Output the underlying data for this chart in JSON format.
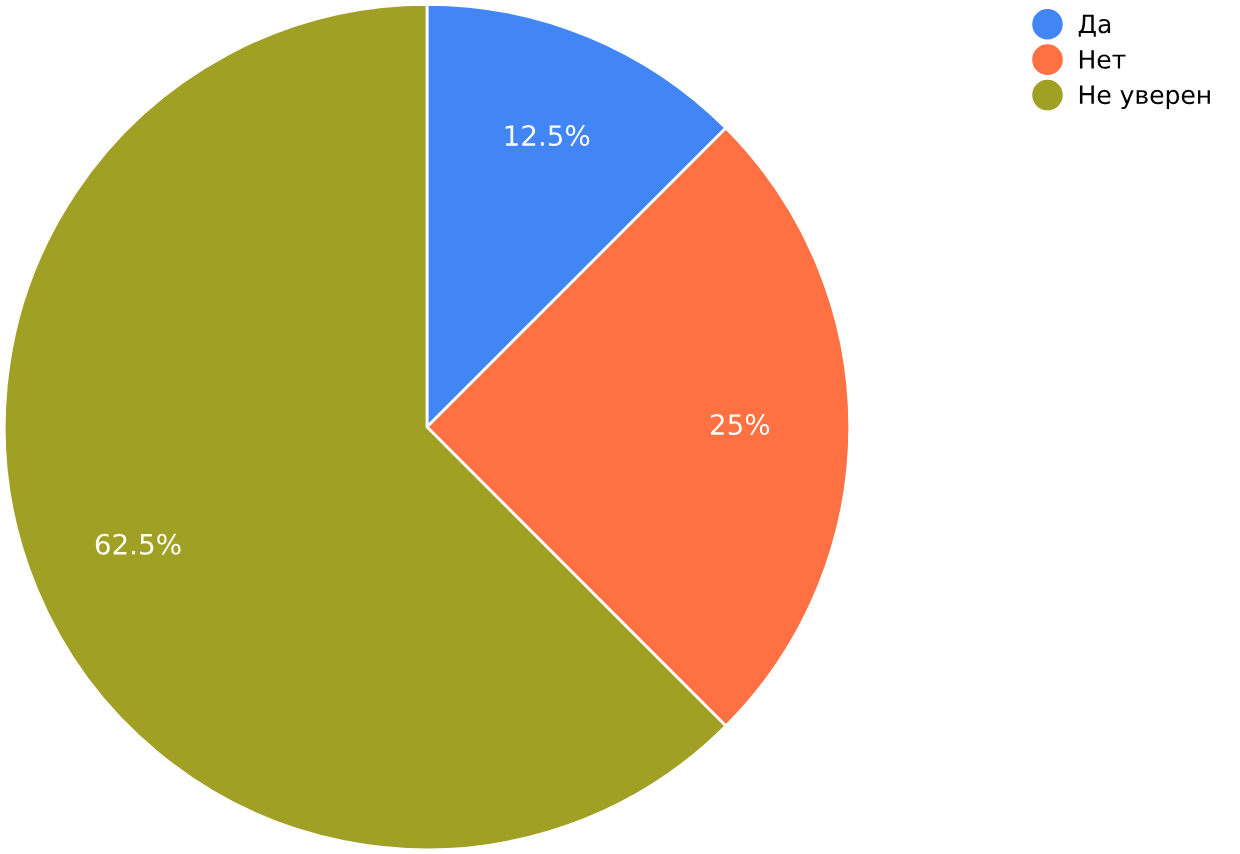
{
  "chart_data": {
    "type": "pie",
    "categories": [
      "Да",
      "Нет",
      "Не уверен"
    ],
    "values": [
      12.5,
      25,
      62.5
    ],
    "colors": [
      "#4285f4",
      "#ff7043",
      "#a0a025"
    ],
    "value_labels": [
      "12.5%",
      "25%",
      "62.5%"
    ],
    "legend": "top right"
  }
}
